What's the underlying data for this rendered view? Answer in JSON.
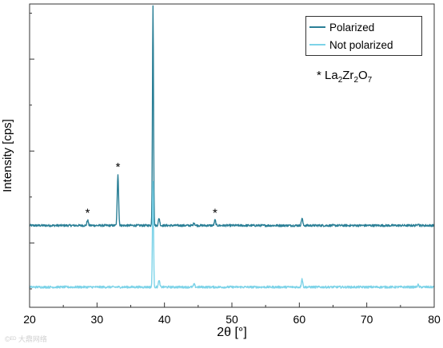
{
  "chart_data": {
    "type": "line",
    "xlabel": "2θ [°]",
    "ylabel": "Intensity [cps]",
    "xlim": [
      20,
      80
    ],
    "xticks": [
      20,
      30,
      40,
      50,
      60,
      70,
      80
    ],
    "y_tick_labels": "none",
    "grid": false,
    "legend_position": "top-right",
    "series": [
      {
        "name": "Polarized",
        "color": "#2a7f96",
        "baseline": 0.345,
        "noise": 0.006,
        "peaks": [
          {
            "x": 28.6,
            "height": 0.03,
            "marked": true
          },
          {
            "x": 33.1,
            "height": 0.28,
            "marked": true
          },
          {
            "x": 38.3,
            "height": 1.2,
            "marked": false
          },
          {
            "x": 39.2,
            "height": 0.04,
            "marked": false
          },
          {
            "x": 44.4,
            "height": 0.015,
            "marked": false
          },
          {
            "x": 47.5,
            "height": 0.03,
            "marked": true
          },
          {
            "x": 60.4,
            "height": 0.04,
            "marked": false
          },
          {
            "x": 77.6,
            "height": 0.012,
            "marked": false
          }
        ]
      },
      {
        "name": "Not polarized",
        "color": "#7dd3e8",
        "baseline": 0.01,
        "noise": 0.006,
        "peaks": [
          {
            "x": 38.3,
            "height": 0.58,
            "marked": false
          },
          {
            "x": 39.2,
            "height": 0.035,
            "marked": false
          },
          {
            "x": 44.4,
            "height": 0.015,
            "marked": false
          },
          {
            "x": 60.4,
            "height": 0.045,
            "marked": false
          },
          {
            "x": 77.6,
            "height": 0.012,
            "marked": false
          }
        ]
      }
    ],
    "annotations": [
      {
        "symbol": "*",
        "label": "La2Zr2O7",
        "parts": [
          "La",
          "2",
          "Zr",
          "2",
          "O",
          "7"
        ]
      }
    ]
  },
  "watermark": "©ᴱᴰ 大鼎网络"
}
